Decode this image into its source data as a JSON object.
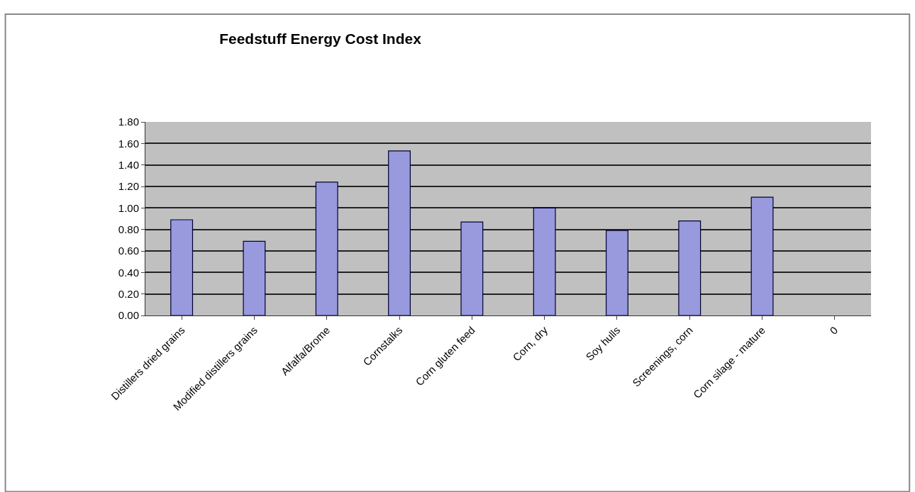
{
  "chart_data": {
    "type": "bar",
    "title": "Feedstuff Energy Cost Index",
    "categories": [
      "Distillers dried grains",
      "Modified distillers grains",
      "Alfalfa/Brome",
      "Cornstalks",
      "Corn gluten feed",
      "Corn, dry",
      "Soy hulls",
      "Screenings, corn",
      "Corn silage - mature",
      "0"
    ],
    "values": [
      0.89,
      0.69,
      1.24,
      1.53,
      0.87,
      1.0,
      0.79,
      0.88,
      1.1,
      null
    ],
    "color": "#9999dd",
    "ylim": [
      0,
      1.8
    ],
    "yticks": [
      {
        "value": 0,
        "label": "0.00"
      },
      {
        "value": 0.2,
        "label": "0.20"
      },
      {
        "value": 0.4,
        "label": "0.40"
      },
      {
        "value": 0.6,
        "label": "0.60"
      },
      {
        "value": 0.8,
        "label": "0.80"
      },
      {
        "value": 1.0,
        "label": "1.00"
      },
      {
        "value": 1.2,
        "label": "1.20"
      },
      {
        "value": 1.4,
        "label": "1.40"
      },
      {
        "value": 1.6,
        "label": "1.60"
      },
      {
        "value": 1.8,
        "label": "1.80"
      }
    ],
    "grid": "y"
  }
}
